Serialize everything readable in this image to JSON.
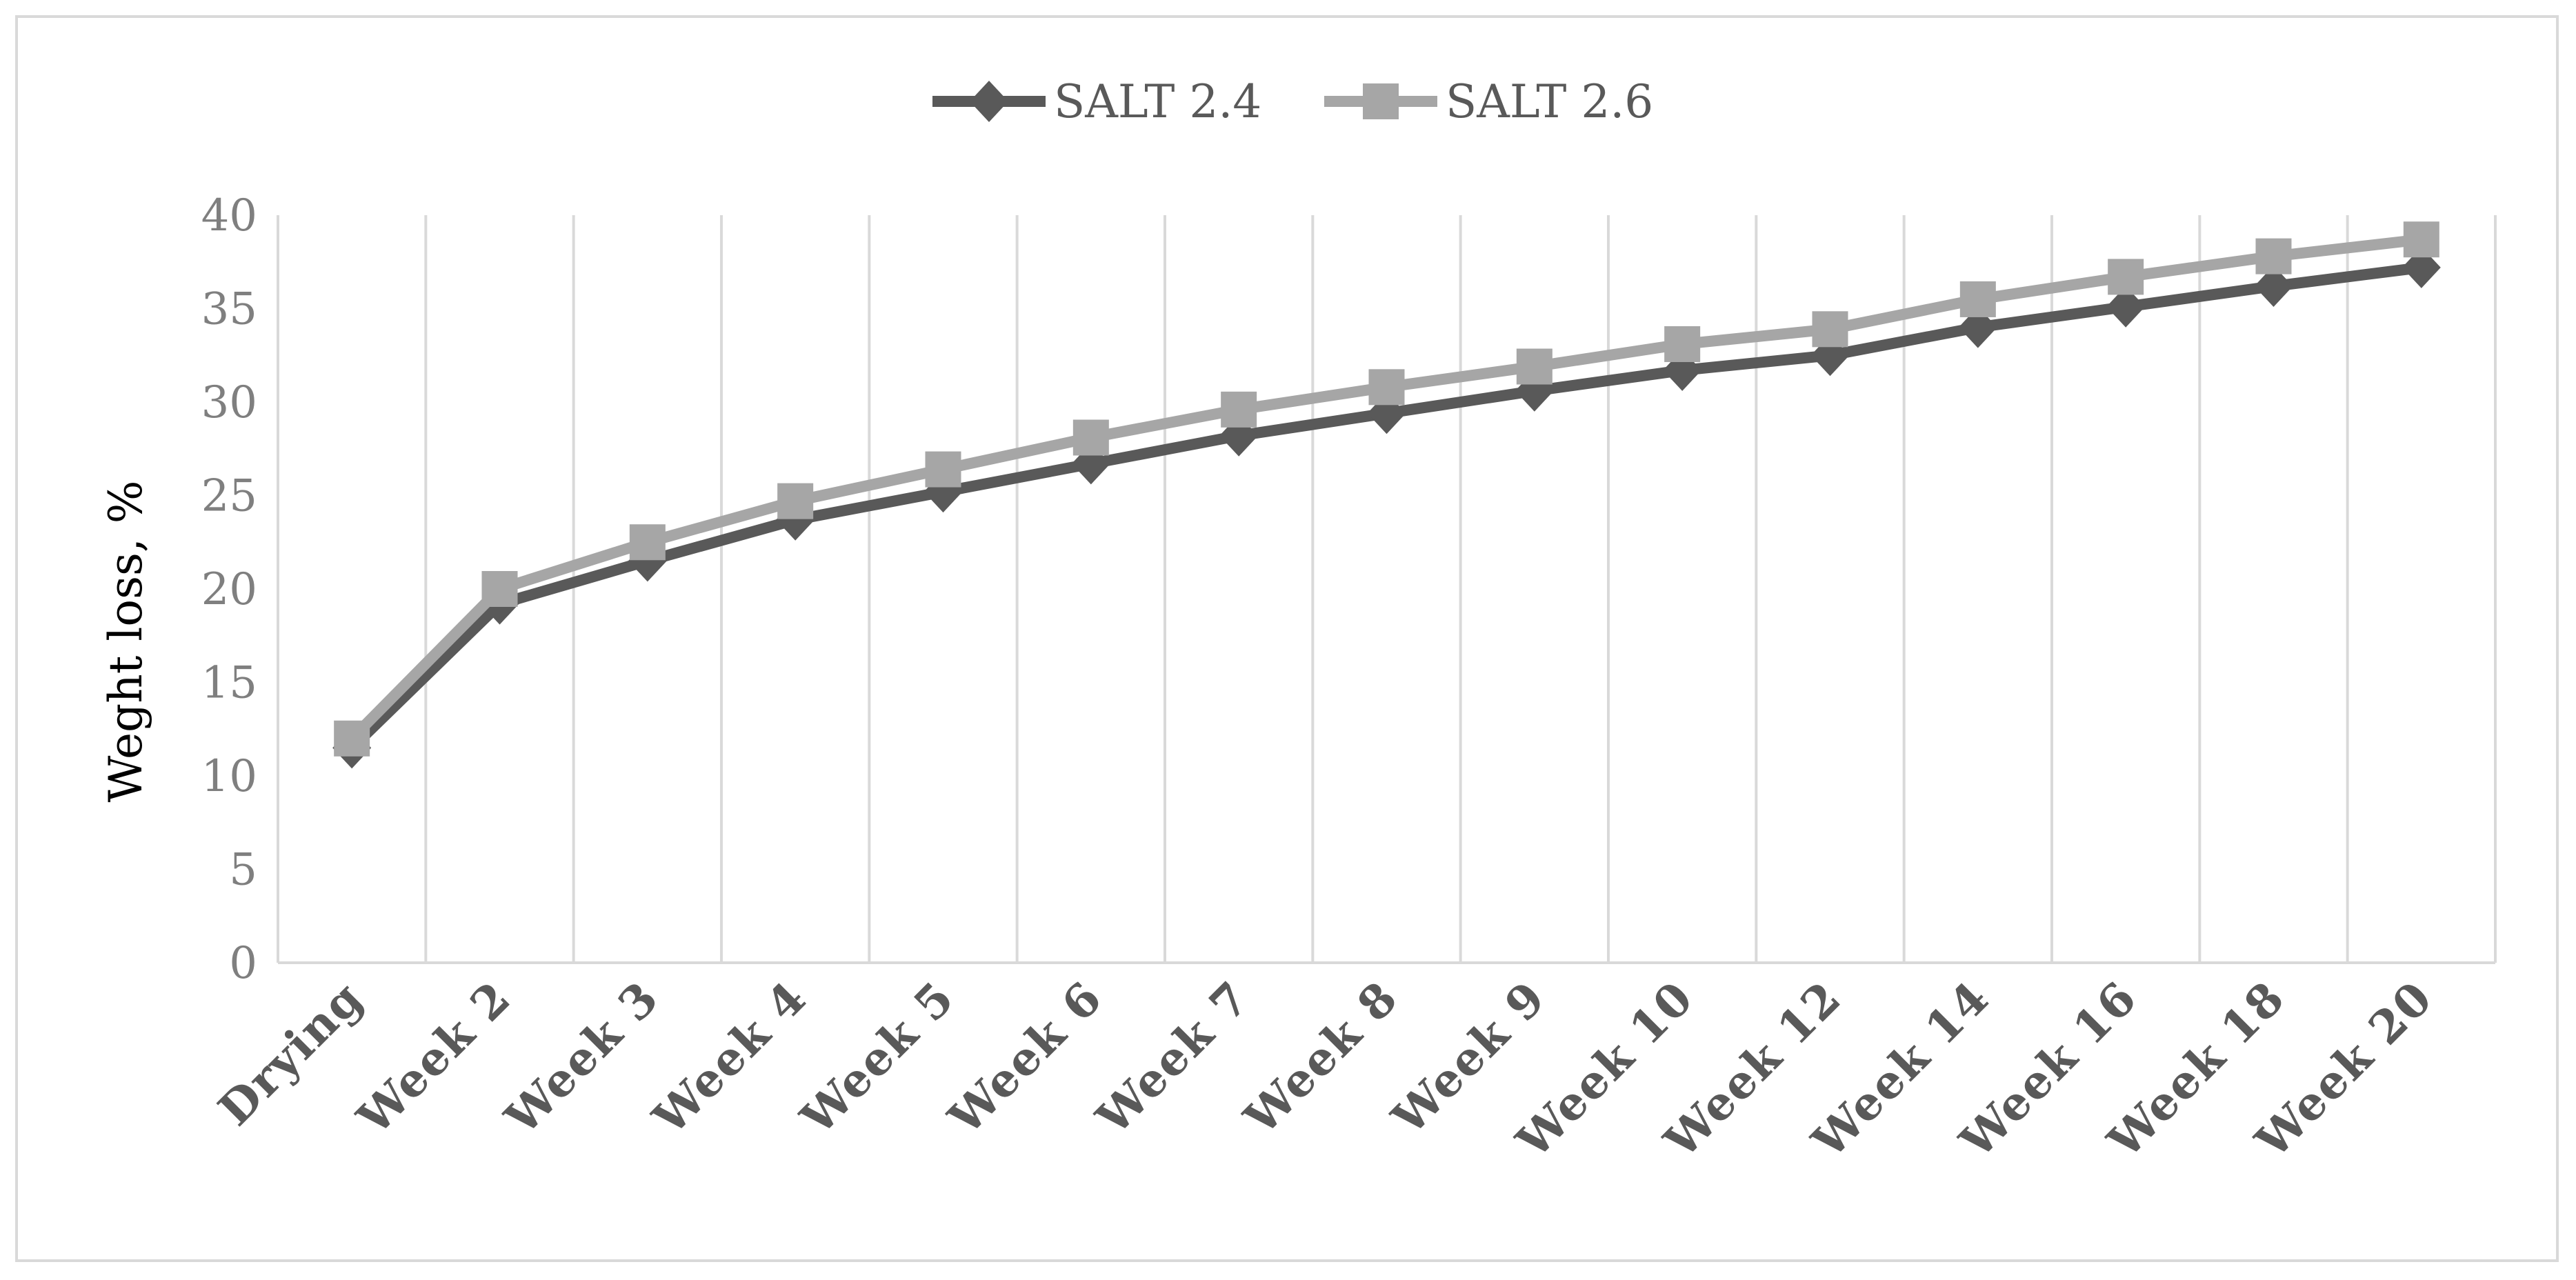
{
  "chart_data": {
    "type": "line",
    "title": "",
    "xlabel": "",
    "ylabel": "Weght loss, %",
    "categories": [
      "Drying",
      "Week 2",
      "Week 3",
      "Week 4",
      "Week 5",
      "Week 6",
      "Week 7",
      "Week 8",
      "Week 9",
      "Week 10",
      "Week 12",
      "Week 14",
      "Week 16",
      "Week 18",
      "Week 20"
    ],
    "series": [
      {
        "name": "SALT 2.4",
        "color": "#595959",
        "marker": "diamond",
        "values": [
          11.5,
          19.2,
          21.5,
          23.7,
          25.2,
          26.7,
          28.2,
          29.4,
          30.6,
          31.7,
          32.5,
          34.0,
          35.1,
          36.2,
          37.2
        ]
      },
      {
        "name": "SALT 2.6",
        "color": "#a6a6a6",
        "marker": "square",
        "values": [
          12.0,
          20.0,
          22.5,
          24.7,
          26.4,
          28.1,
          29.6,
          30.8,
          31.9,
          33.1,
          33.9,
          35.5,
          36.7,
          37.8,
          38.7
        ]
      }
    ],
    "ylim": [
      0,
      40
    ],
    "yticks": [
      0,
      5,
      10,
      15,
      20,
      25,
      30,
      35,
      40
    ],
    "grid": "vertical",
    "legend_position": "top"
  }
}
